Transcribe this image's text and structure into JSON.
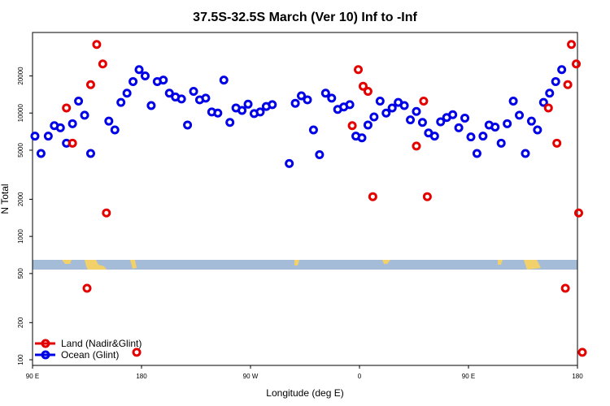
{
  "chart_data": {
    "type": "scatter",
    "title": "37.5S-32.5S March (Ver 10)   Inf to -Inf",
    "xlabel": "Longitude (deg E)",
    "ylabel": "N Total",
    "y_scale": "log",
    "x_range_deg_east": [
      90,
      540
    ],
    "y_range": [
      90,
      45000
    ],
    "x_ticks": [
      {
        "value": 90,
        "label": "90 E"
      },
      {
        "value": 180,
        "label": "180"
      },
      {
        "value": 270,
        "label": "90 W"
      },
      {
        "value": 360,
        "label": "0"
      },
      {
        "value": 450,
        "label": "90 E"
      },
      {
        "value": 540,
        "label": "180"
      }
    ],
    "y_ticks": [
      100,
      200,
      500,
      1000,
      2000,
      5000,
      10000,
      20000
    ],
    "legend": {
      "position": "bottom-left",
      "entries": [
        "Land (Nadir&Glint)",
        "Ocean (Glint)"
      ]
    },
    "series": [
      {
        "name": "Land (Nadir&Glint)",
        "color": "#e50000",
        "points": [
          {
            "x": 118,
            "y": 11000
          },
          {
            "x": 123,
            "y": 5700
          },
          {
            "x": 135,
            "y": 380
          },
          {
            "x": 138,
            "y": 17000
          },
          {
            "x": 143,
            "y": 36000
          },
          {
            "x": 148,
            "y": 25000
          },
          {
            "x": 151,
            "y": 1550
          },
          {
            "x": 176,
            "y": 115
          },
          {
            "x": 354,
            "y": 7900
          },
          {
            "x": 359,
            "y": 22500
          },
          {
            "x": 363,
            "y": 16500
          },
          {
            "x": 367,
            "y": 15000
          },
          {
            "x": 371,
            "y": 2100
          },
          {
            "x": 407,
            "y": 5400
          },
          {
            "x": 413,
            "y": 12500
          },
          {
            "x": 416,
            "y": 2100
          },
          {
            "x": 516,
            "y": 11000
          },
          {
            "x": 523,
            "y": 5700
          },
          {
            "x": 530,
            "y": 380
          },
          {
            "x": 532,
            "y": 17000
          },
          {
            "x": 535,
            "y": 36000
          },
          {
            "x": 539,
            "y": 25000
          },
          {
            "x": 541,
            "y": 1550
          },
          {
            "x": 544,
            "y": 115
          }
        ]
      },
      {
        "name": "Ocean (Glint)",
        "color": "#0000e6",
        "points": [
          {
            "x": 92,
            "y": 6500
          },
          {
            "x": 97,
            "y": 4700
          },
          {
            "x": 103,
            "y": 6500
          },
          {
            "x": 108,
            "y": 7900
          },
          {
            "x": 113,
            "y": 7600
          },
          {
            "x": 118,
            "y": 5700
          },
          {
            "x": 123,
            "y": 8200
          },
          {
            "x": 128,
            "y": 12500
          },
          {
            "x": 133,
            "y": 9600
          },
          {
            "x": 138,
            "y": 4700
          },
          {
            "x": 153,
            "y": 8600
          },
          {
            "x": 158,
            "y": 7300
          },
          {
            "x": 163,
            "y": 12200
          },
          {
            "x": 168,
            "y": 14500
          },
          {
            "x": 173,
            "y": 18000
          },
          {
            "x": 178,
            "y": 22500
          },
          {
            "x": 183,
            "y": 20000
          },
          {
            "x": 188,
            "y": 11500
          },
          {
            "x": 193,
            "y": 18000
          },
          {
            "x": 198,
            "y": 18500
          },
          {
            "x": 203,
            "y": 14500
          },
          {
            "x": 208,
            "y": 13500
          },
          {
            "x": 213,
            "y": 13000
          },
          {
            "x": 218,
            "y": 8000
          },
          {
            "x": 223,
            "y": 15000
          },
          {
            "x": 228,
            "y": 12800
          },
          {
            "x": 233,
            "y": 13200
          },
          {
            "x": 238,
            "y": 10200
          },
          {
            "x": 243,
            "y": 10000
          },
          {
            "x": 248,
            "y": 18500
          },
          {
            "x": 253,
            "y": 8400
          },
          {
            "x": 258,
            "y": 11000
          },
          {
            "x": 263,
            "y": 10500
          },
          {
            "x": 268,
            "y": 11800
          },
          {
            "x": 273,
            "y": 9900
          },
          {
            "x": 278,
            "y": 10200
          },
          {
            "x": 283,
            "y": 11300
          },
          {
            "x": 288,
            "y": 11700
          },
          {
            "x": 302,
            "y": 3900
          },
          {
            "x": 307,
            "y": 12000
          },
          {
            "x": 312,
            "y": 13800
          },
          {
            "x": 317,
            "y": 12800
          },
          {
            "x": 322,
            "y": 7300
          },
          {
            "x": 327,
            "y": 4600
          },
          {
            "x": 332,
            "y": 14500
          },
          {
            "x": 337,
            "y": 13200
          },
          {
            "x": 342,
            "y": 10700
          },
          {
            "x": 347,
            "y": 11200
          },
          {
            "x": 352,
            "y": 11700
          },
          {
            "x": 357,
            "y": 6500
          },
          {
            "x": 362,
            "y": 6300
          },
          {
            "x": 367,
            "y": 8000
          },
          {
            "x": 372,
            "y": 9300
          },
          {
            "x": 377,
            "y": 12500
          },
          {
            "x": 382,
            "y": 10000
          },
          {
            "x": 387,
            "y": 11000
          },
          {
            "x": 392,
            "y": 12200
          },
          {
            "x": 397,
            "y": 11500
          },
          {
            "x": 402,
            "y": 8800
          },
          {
            "x": 407,
            "y": 10300
          },
          {
            "x": 412,
            "y": 8400
          },
          {
            "x": 417,
            "y": 6900
          },
          {
            "x": 422,
            "y": 6500
          },
          {
            "x": 427,
            "y": 8500
          },
          {
            "x": 432,
            "y": 9200
          },
          {
            "x": 437,
            "y": 9700
          },
          {
            "x": 442,
            "y": 7600
          },
          {
            "x": 447,
            "y": 9100
          },
          {
            "x": 452,
            "y": 6400
          },
          {
            "x": 457,
            "y": 4700
          },
          {
            "x": 462,
            "y": 6500
          },
          {
            "x": 467,
            "y": 8000
          },
          {
            "x": 472,
            "y": 7700
          },
          {
            "x": 477,
            "y": 5700
          },
          {
            "x": 482,
            "y": 8200
          },
          {
            "x": 487,
            "y": 12500
          },
          {
            "x": 492,
            "y": 9600
          },
          {
            "x": 497,
            "y": 4700
          },
          {
            "x": 502,
            "y": 8600
          },
          {
            "x": 507,
            "y": 7300
          },
          {
            "x": 512,
            "y": 12200
          },
          {
            "x": 517,
            "y": 14500
          },
          {
            "x": 522,
            "y": 18000
          },
          {
            "x": 527,
            "y": 22500
          }
        ]
      }
    ]
  }
}
